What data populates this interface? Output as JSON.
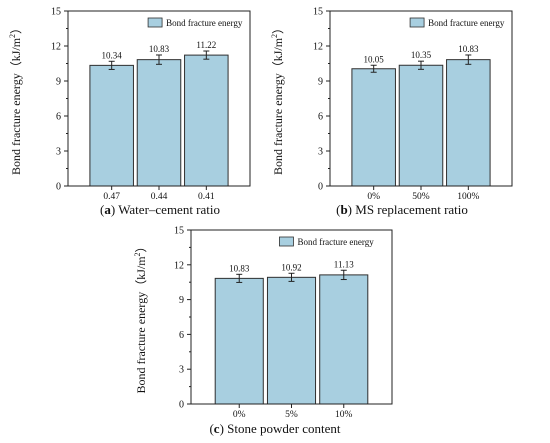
{
  "colors": {
    "bar_fill": "#a8cfe0",
    "bar_stroke": "#2f2f2f",
    "axis": "#222222",
    "text": "#111111"
  },
  "chart_data": [
    {
      "type": "bar",
      "panel_letter": "a",
      "caption_text": "Water–cement ratio",
      "categories": [
        "0.47",
        "0.44",
        "0.41"
      ],
      "series": [
        {
          "name": "Bond fracture energy",
          "values": [
            10.34,
            10.83,
            11.22
          ]
        }
      ],
      "value_labels": [
        "10.34",
        "10.83",
        "11.22"
      ],
      "error": [
        0.35,
        0.4,
        0.35
      ],
      "ylabel": "Bond fracture energy（kJ/m",
      "ylabel_sup": "2",
      "ylabel_end": "）",
      "ylim": [
        0,
        15
      ],
      "yticks": [
        "0",
        "3",
        "6",
        "9",
        "12",
        "15"
      ],
      "legend_position": "top-right",
      "grid": false
    },
    {
      "type": "bar",
      "panel_letter": "b",
      "caption_text": "MS replacement ratio",
      "categories": [
        "0%",
        "50%",
        "100%"
      ],
      "series": [
        {
          "name": "Bond fracture energy",
          "values": [
            10.05,
            10.35,
            10.83
          ]
        }
      ],
      "value_labels": [
        "10.05",
        "10.35",
        "10.83"
      ],
      "error": [
        0.3,
        0.35,
        0.4
      ],
      "ylabel": "Bond fracture energy（kJ/m",
      "ylabel_sup": "2",
      "ylabel_end": "）",
      "ylim": [
        0,
        15
      ],
      "yticks": [
        "0",
        "3",
        "6",
        "9",
        "12",
        "15"
      ],
      "legend_position": "top-right",
      "grid": false
    },
    {
      "type": "bar",
      "panel_letter": "c",
      "caption_text": "Stone powder content",
      "categories": [
        "0%",
        "5%",
        "10%"
      ],
      "series": [
        {
          "name": "Bond fracture energy",
          "values": [
            10.83,
            10.92,
            11.13
          ]
        }
      ],
      "value_labels": [
        "10.83",
        "10.92",
        "11.13"
      ],
      "error": [
        0.35,
        0.35,
        0.4
      ],
      "ylabel": "Bond fracture energy（kJ/m",
      "ylabel_sup": "2",
      "ylabel_end": "）",
      "ylim": [
        0,
        15
      ],
      "yticks": [
        "0",
        "3",
        "6",
        "9",
        "12",
        "15"
      ],
      "legend_position": "top-right",
      "grid": false
    }
  ]
}
